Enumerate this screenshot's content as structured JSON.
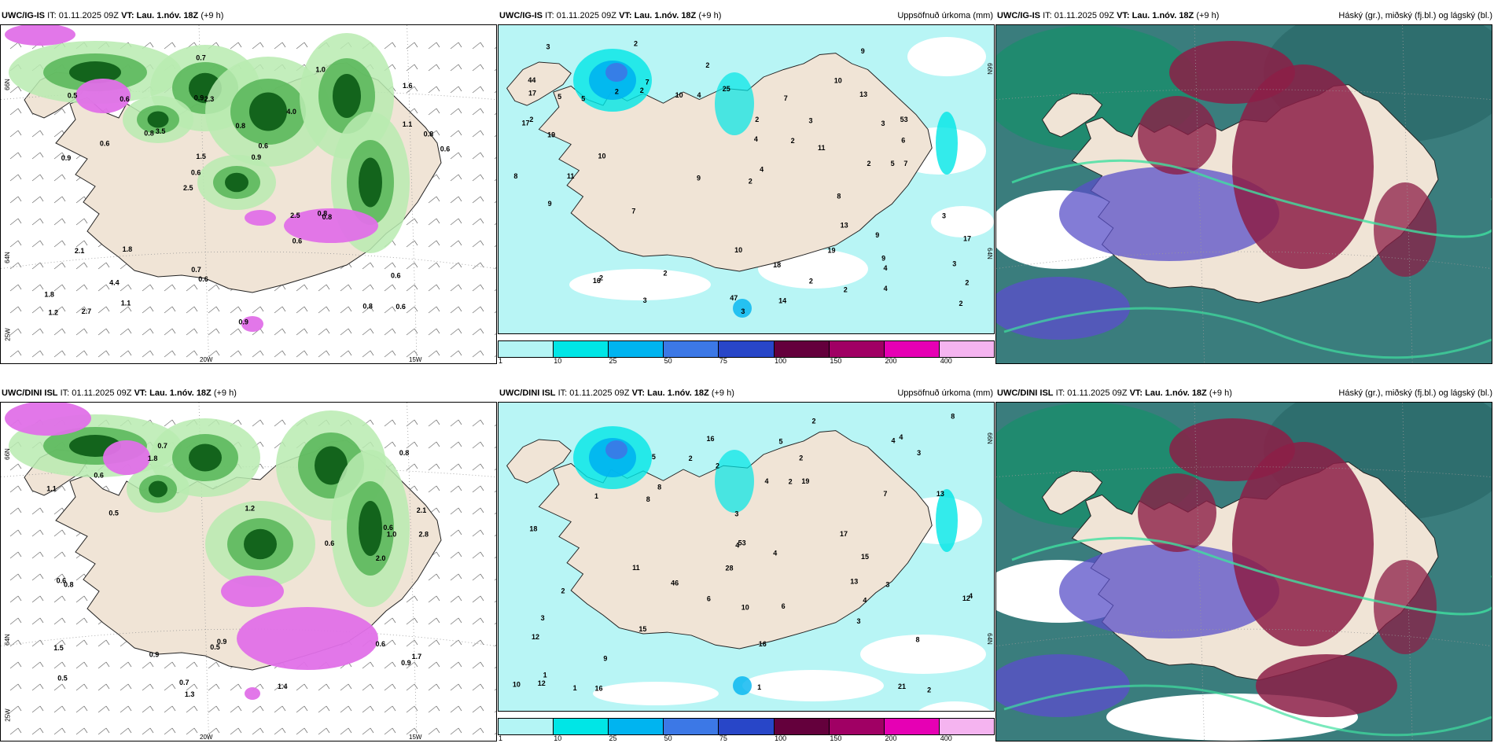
{
  "panels": [
    {
      "id": "top-left",
      "model": "UWC/IG-IS",
      "it_label": "IT:",
      "it_value": "01.11.2025 09Z",
      "vt_label": "VT:",
      "vt_value": "Lau. 1.nóv. 18Z",
      "lead": "(+9 h)",
      "right_title": "",
      "axis_labels": {
        "lat_66": "66N",
        "lat_64": "64N",
        "lon_25": "25W",
        "lon_20": "20W",
        "lon_15": "15W"
      }
    },
    {
      "id": "top-middle",
      "model": "UWC/IG-IS",
      "it_label": "IT:",
      "it_value": "01.11.2025 09Z",
      "vt_label": "VT:",
      "vt_value": "Lau. 1.nóv. 18Z",
      "lead": "(+9 h)",
      "right_title": "Uppsöfnuð úrkoma (mm)",
      "axis_labels": {
        "lat_66": "66N",
        "lat_64": "64N"
      }
    },
    {
      "id": "top-right",
      "model": "UWC/IG-IS",
      "it_label": "IT:",
      "it_value": "01.11.2025 09Z",
      "vt_label": "VT:",
      "vt_value": "Lau. 1.nóv. 18Z",
      "lead": "(+9 h)",
      "right_title": "Háský (gr.), miðský (fj.bl.) og lágský (bl.)"
    },
    {
      "id": "bottom-left",
      "model": "UWC/DINI ISL",
      "it_label": "IT:",
      "it_value": "01.11.2025 09Z",
      "vt_label": "VT:",
      "vt_value": "Lau. 1.nóv. 18Z",
      "lead": "(+9 h)",
      "right_title": "",
      "axis_labels": {
        "lat_66": "66N",
        "lat_64": "64N",
        "lon_25": "25W",
        "lon_20": "20W",
        "lon_15": "15W"
      }
    },
    {
      "id": "bottom-middle",
      "model": "UWC/DINI ISL",
      "it_label": "IT:",
      "it_value": "01.11.2025 09Z",
      "vt_label": "VT:",
      "vt_value": "Lau. 1.nóv. 18Z",
      "lead": "(+9 h)",
      "right_title": "Uppsöfnuð úrkoma (mm)",
      "axis_labels": {
        "lat_66": "66N",
        "lat_64": "64N"
      }
    },
    {
      "id": "bottom-right",
      "model": "UWC/DINI ISL",
      "it_label": "IT:",
      "it_value": "01.11.2025 09Z",
      "vt_label": "VT:",
      "vt_value": "Lau. 1.nóv. 18Z",
      "lead": "(+9 h)",
      "right_title": "Háský (gr.), miðský (fj.bl.) og lágský (bl.)"
    }
  ],
  "precip_colorbar": {
    "ticks": [
      "1",
      "10",
      "25",
      "50",
      "75",
      "100",
      "150",
      "200",
      "400"
    ],
    "colors": [
      "#b4f5f5",
      "#00e6e6",
      "#00b4f0",
      "#3c78e6",
      "#2846c8",
      "#64003c",
      "#a00064",
      "#e600b4",
      "#f5b4f0"
    ]
  },
  "colors": {
    "land": "#f0e4d6",
    "sea_precip": "#b8f5f5",
    "precip_light_green": "#b8ebb0",
    "precip_green": "#5cb85c",
    "precip_dark_green": "#0a5a14",
    "snow_magenta": "#e070e8",
    "cloud_high": "#1e8c6e",
    "cloud_mid": "#8c1e46",
    "cloud_low": "#5a50c8"
  },
  "precip_top_labels": [
    "2",
    "4",
    "44",
    "53",
    "47",
    "25",
    "14",
    "10",
    "10",
    "9",
    "9",
    "7",
    "8",
    "5",
    "2",
    "13",
    "17",
    "19",
    "18",
    "13",
    "17",
    "10",
    "11",
    "9",
    "6",
    "5",
    "3",
    "2",
    "4",
    "2",
    "16",
    "11",
    "9",
    "7",
    "7",
    "4",
    "2",
    "2",
    "2",
    "4",
    "2",
    "8",
    "2",
    "3",
    "3",
    "3",
    "3",
    "3",
    "2",
    "5",
    "2",
    "2",
    "2",
    "3",
    "2",
    "4",
    "2",
    "9",
    "17",
    "7",
    "10",
    "19"
  ],
  "precip_bottom_labels": [
    "3",
    "2",
    "4",
    "1",
    "15",
    "28",
    "46",
    "53",
    "21",
    "11",
    "2",
    "1",
    "2",
    "8",
    "8",
    "3",
    "8",
    "9",
    "12",
    "13",
    "16",
    "19",
    "18",
    "16",
    "12",
    "12",
    "10",
    "6",
    "8",
    "7",
    "4",
    "3",
    "16",
    "15",
    "13",
    "17",
    "2",
    "2",
    "4",
    "2",
    "10",
    "5",
    "6",
    "5",
    "4",
    "4",
    "4",
    "1",
    "1",
    "3",
    "2",
    "4",
    "3"
  ],
  "amount_top_labels": [
    "0.6",
    "0.9",
    "1.6",
    "2.5",
    "4.0",
    "2.7",
    "0.9",
    "0.8",
    "2.1",
    "3.5",
    "1.8",
    "4.4",
    "2.3",
    "0.6",
    "0.8",
    "0.5",
    "0.7",
    "0.6",
    "2.5",
    "1.1",
    "0.6",
    "0.7",
    "1.5",
    "0.6",
    "1.0",
    "1.8",
    "0.8",
    "0.6",
    "0.8",
    "0.9",
    "0.8",
    "0.6",
    "0.6",
    "1.1",
    "0.8",
    "0.9",
    "1.2",
    "0.6"
  ],
  "amount_bottom_labels": [
    "0.6",
    "2.1",
    "1.7",
    "1.2",
    "0.5",
    "0.7",
    "0.6",
    "0.9",
    "0.8",
    "0.5",
    "2.8",
    "1.1",
    "2.0",
    "1.3",
    "1.5",
    "0.6",
    "0.9",
    "1.8",
    "0.9",
    "1.0",
    "0.6",
    "0.8",
    "1.4",
    "0.6",
    "0.7",
    "0.5"
  ]
}
